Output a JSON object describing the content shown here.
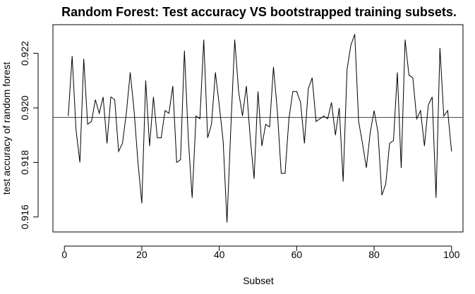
{
  "chart_data": {
    "type": "line",
    "title": "Random Forest: Test accuracy VS bootstrapped training subsets.",
    "xlabel": "Subset",
    "ylabel": "test accuracy of random forest",
    "xlim": [
      -2.96,
      102.96
    ],
    "ylim": [
      0.91545,
      0.92305
    ],
    "xticks": [
      0,
      20,
      40,
      60,
      80,
      100
    ],
    "yticks": [
      0.916,
      0.918,
      0.92,
      0.922
    ],
    "xtick_labels": [
      "0",
      "20",
      "40",
      "60",
      "80",
      "100"
    ],
    "ytick_labels": [
      "0.916",
      "0.918",
      "0.920",
      "0.922"
    ],
    "grid": false,
    "reference_line": {
      "y": 0.91965,
      "color": "#ff0000"
    },
    "series": [
      {
        "color": "#000000",
        "x": [
          1,
          2,
          3,
          4,
          5,
          6,
          7,
          8,
          9,
          10,
          11,
          12,
          13,
          14,
          15,
          16,
          17,
          18,
          19,
          20,
          21,
          22,
          23,
          24,
          25,
          26,
          27,
          28,
          29,
          30,
          31,
          32,
          33,
          34,
          35,
          36,
          37,
          38,
          39,
          40,
          41,
          42,
          43,
          44,
          45,
          46,
          47,
          48,
          49,
          50,
          51,
          52,
          53,
          54,
          55,
          56,
          57,
          58,
          59,
          60,
          61,
          62,
          63,
          64,
          65,
          66,
          67,
          68,
          69,
          70,
          71,
          72,
          73,
          74,
          75,
          76,
          77,
          78,
          79,
          80,
          81,
          82,
          83,
          84,
          85,
          86,
          87,
          88,
          89,
          90,
          91,
          92,
          93,
          94,
          95,
          96,
          97,
          98,
          99,
          100
        ],
        "values": [
          0.9197,
          0.9219,
          0.9192,
          0.918,
          0.9218,
          0.9194,
          0.9195,
          0.9203,
          0.9198,
          0.9204,
          0.9187,
          0.9204,
          0.9203,
          0.9184,
          0.9187,
          0.9198,
          0.9213,
          0.9199,
          0.918,
          0.9165,
          0.921,
          0.9186,
          0.9204,
          0.9189,
          0.9189,
          0.9199,
          0.9198,
          0.9208,
          0.918,
          0.9181,
          0.9221,
          0.9189,
          0.9167,
          0.9197,
          0.9196,
          0.9225,
          0.9189,
          0.9194,
          0.9213,
          0.9201,
          0.9188,
          0.9158,
          0.9193,
          0.9225,
          0.9206,
          0.9197,
          0.9208,
          0.9189,
          0.9174,
          0.9206,
          0.9186,
          0.9194,
          0.9193,
          0.9215,
          0.9199,
          0.9176,
          0.9176,
          0.9196,
          0.9206,
          0.9206,
          0.9202,
          0.9187,
          0.9207,
          0.9211,
          0.9195,
          0.9196,
          0.9197,
          0.9196,
          0.9202,
          0.919,
          0.92,
          0.9173,
          0.9214,
          0.9223,
          0.9227,
          0.9195,
          0.9187,
          0.9178,
          0.9191,
          0.9199,
          0.9191,
          0.9168,
          0.9172,
          0.9187,
          0.9188,
          0.9213,
          0.9178,
          0.9225,
          0.9212,
          0.9211,
          0.9196,
          0.9199,
          0.9186,
          0.9201,
          0.9204,
          0.9167,
          0.9222,
          0.9197,
          0.9199,
          0.9184
        ]
      }
    ]
  }
}
